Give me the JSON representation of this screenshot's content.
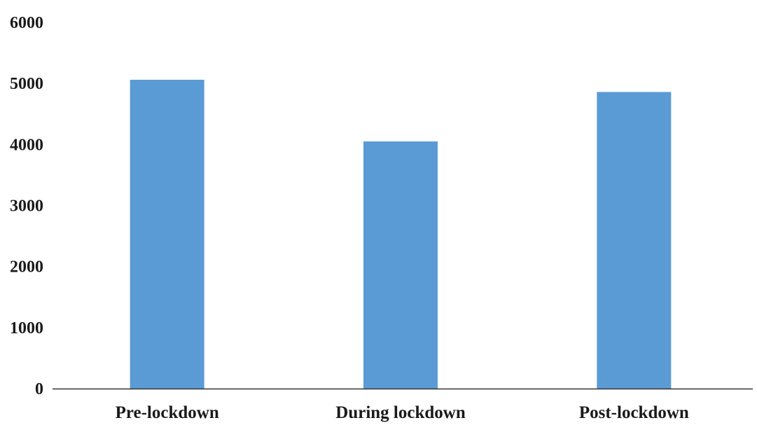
{
  "chart_data": {
    "type": "bar",
    "title": "",
    "xlabel": "",
    "ylabel": "",
    "categories": [
      "Pre-lockdown",
      "During lockdown",
      "Post-lockdown"
    ],
    "values": [
      5060,
      4050,
      4860
    ],
    "ylim": [
      0,
      6000
    ],
    "yticks": [
      0,
      1000,
      2000,
      3000,
      4000,
      5000,
      6000
    ],
    "grid": false,
    "legend": "none",
    "bar_color": "#5b9bd5",
    "axis_color": "#333333"
  }
}
